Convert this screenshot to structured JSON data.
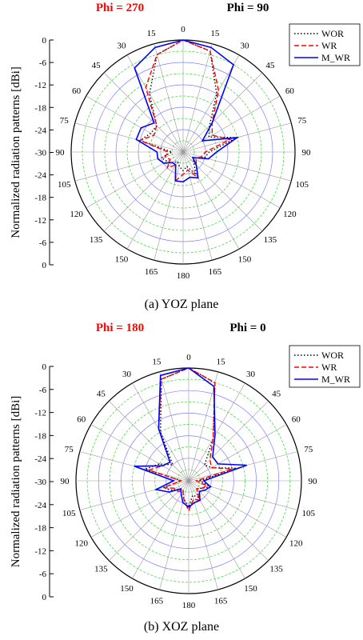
{
  "colors": {
    "wor": "#000000",
    "wr": "#ff0000",
    "mwr": "#0000ff",
    "phi_left": "#ff0000",
    "phi_right": "#000000",
    "grid_ring": "#2fd62f",
    "grid_ring_major": "#8080ff",
    "grid_spoke": "#999999"
  },
  "chart_data": [
    {
      "type": "polar-line",
      "phi_left": "Phi = 270",
      "phi_right": "Phi = 90",
      "ylabel": "Normalized radiation patterns [dBi]",
      "caption": "(a) YOZ plane",
      "radial_range_db": [
        -30,
        0
      ],
      "radial_tick_labels": [
        "0",
        "-6",
        "-12",
        "-18",
        "-24",
        "-30",
        "-24",
        "-18",
        "-12",
        "-6",
        "0"
      ],
      "angle_tick_labels": [
        "0",
        "15",
        "30",
        "45",
        "60",
        "75",
        "90",
        "105",
        "120",
        "135",
        "150",
        "165",
        "180",
        "165",
        "150",
        "135",
        "120",
        "105",
        "90",
        "75",
        "60",
        "45",
        "30",
        "15"
      ],
      "legend": [
        "WOR",
        "WR",
        "M_WR"
      ],
      "angle_deg_ccw_from_top": [
        0,
        15,
        30,
        45,
        60,
        75,
        90,
        105,
        120,
        135,
        150,
        165,
        180,
        195,
        210,
        225,
        240,
        255,
        270,
        285,
        300,
        315,
        330,
        345
      ],
      "series": [
        {
          "name": "WOR",
          "style": "dotted",
          "values": [
            0,
            -2,
            -12,
            -20,
            -22,
            -15,
            -23,
            -24,
            -27,
            -26,
            -23,
            -26,
            -25,
            -26,
            -27,
            -26,
            -25,
            -24,
            -27,
            -18,
            -20,
            -20,
            -12,
            -3
          ]
        },
        {
          "name": "WR",
          "style": "dashed",
          "values": [
            0,
            -2,
            -11,
            -19,
            -21,
            -17,
            -24,
            -25,
            -26,
            -25,
            -22,
            -25,
            -24,
            -22,
            -26,
            -24,
            -26,
            -25,
            -26,
            -18,
            -21,
            -20,
            -10,
            -3
          ]
        },
        {
          "name": "M_WR",
          "style": "solid",
          "values": [
            0,
            -1,
            -3,
            -19,
            -24,
            -15,
            -21,
            -23,
            -27,
            -25,
            -22,
            -23,
            -22,
            -22,
            -26,
            -26,
            -24,
            -23,
            -23,
            -17,
            -17,
            -19,
            -4,
            -1
          ]
        }
      ]
    },
    {
      "type": "polar-line",
      "phi_left": "Phi = 180",
      "phi_right": "Phi = 0",
      "ylabel": "Normalized radiation patterns [dBi]",
      "caption": "(b) XOZ plane",
      "radial_range_db": [
        -30,
        0
      ],
      "radial_tick_labels": [
        "0",
        "-6",
        "-12",
        "-18",
        "-24",
        "-30",
        "-24",
        "-18",
        "-12",
        "-6",
        "0"
      ],
      "angle_tick_labels": [
        "0",
        "15",
        "30",
        "45",
        "60",
        "75",
        "90",
        "105",
        "120",
        "135",
        "150",
        "165",
        "180",
        "165",
        "150",
        "135",
        "120",
        "105",
        "90",
        "75",
        "60",
        "45",
        "30",
        "15"
      ],
      "legend": [
        "WOR",
        "WR",
        "M_WR"
      ],
      "angle_deg_ccw_from_top": [
        0,
        15,
        30,
        45,
        60,
        75,
        90,
        105,
        120,
        135,
        150,
        165,
        180,
        195,
        210,
        225,
        240,
        255,
        270,
        285,
        300,
        315,
        330,
        345
      ],
      "series": [
        {
          "name": "WOR",
          "style": "dotted",
          "values": [
            0,
            -3,
            -17,
            -24,
            -23,
            -17,
            -27,
            -24,
            -26,
            -27,
            -25,
            -26,
            -23,
            -25,
            -27,
            -27,
            -25,
            -23,
            -28,
            -18,
            -21,
            -24,
            -15,
            -2
          ]
        },
        {
          "name": "WR",
          "style": "dashed",
          "values": [
            0,
            -3,
            -17,
            -22,
            -23,
            -18,
            -28,
            -25,
            -26,
            -27,
            -24,
            -25,
            -22,
            -25,
            -27,
            -26,
            -26,
            -23,
            -28,
            -19,
            -22,
            -23,
            -14,
            -2
          ]
        },
        {
          "name": "M_WR",
          "style": "solid",
          "values": [
            0,
            -4,
            -16,
            -21,
            -21,
            -14,
            -26,
            -24,
            -25,
            -26,
            -24,
            -24,
            -23,
            -24,
            -26,
            -27,
            -24,
            -21,
            -26,
            -15,
            -22,
            -23,
            -14,
            -1
          ]
        }
      ]
    }
  ]
}
